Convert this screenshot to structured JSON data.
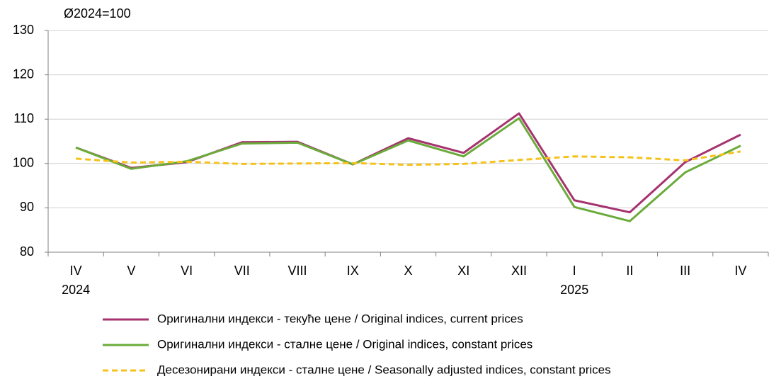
{
  "chart_data": {
    "type": "line",
    "y_axis_label": "Ø2024=100",
    "categories": [
      [
        "IV",
        "2024"
      ],
      [
        "V"
      ],
      [
        "VI"
      ],
      [
        "VII"
      ],
      [
        "VIII"
      ],
      [
        "IX"
      ],
      [
        "X"
      ],
      [
        "XI"
      ],
      [
        "XII"
      ],
      [
        "I",
        "2025"
      ],
      [
        "II"
      ],
      [
        "III"
      ],
      [
        "IV"
      ]
    ],
    "series": [
      {
        "name": "Оригинални индекси - текуће цене / Original indices, current prices",
        "color": "#a6336f",
        "dashed": false,
        "values": [
          103.6,
          99.0,
          100.3,
          104.8,
          104.9,
          99.8,
          105.7,
          102.4,
          111.3,
          91.7,
          89.0,
          100.3,
          106.5
        ]
      },
      {
        "name": "Оригинални индекси - сталне цене / Original indices, constant prices",
        "color": "#6aab3a",
        "dashed": false,
        "values": [
          103.6,
          98.8,
          100.5,
          104.5,
          104.7,
          99.8,
          105.2,
          101.6,
          110.2,
          90.2,
          87.0,
          98.0,
          104.0
        ]
      },
      {
        "name": "Десезонирани индекси - сталне цене / Seasonally adjusted indices, constant prices",
        "color": "#f5c21b",
        "dashed": true,
        "values": [
          101.1,
          100.2,
          100.4,
          99.9,
          100.0,
          100.1,
          99.7,
          99.9,
          100.8,
          101.6,
          101.4,
          100.7,
          102.7
        ]
      }
    ],
    "ylim": [
      80,
      130
    ],
    "yticks": [
      80,
      90,
      100,
      110,
      120,
      130
    ],
    "grid": true
  }
}
